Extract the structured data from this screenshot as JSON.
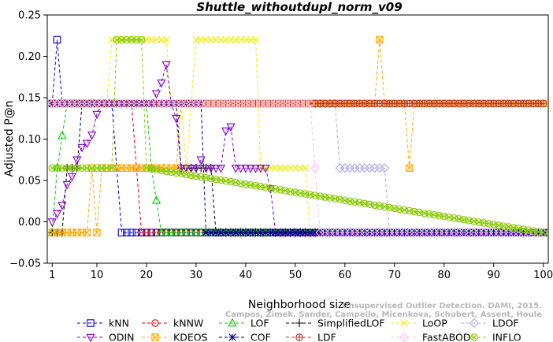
{
  "chart_data": {
    "type": "line",
    "title": "Shuttle_withoutdupl_norm_v09",
    "xlabel": "Neighborhood size",
    "ylabel": "Adjusted P@n",
    "xlim": [
      0,
      101
    ],
    "ylim": [
      -0.05,
      0.25
    ],
    "xticks": [
      1,
      10,
      20,
      30,
      40,
      50,
      60,
      70,
      80,
      90,
      100
    ],
    "yticks": [
      -0.05,
      0.0,
      0.05,
      0.1,
      0.15,
      0.2,
      0.25
    ],
    "ytick_labels": [
      "−0.05",
      "0.00",
      "0.05",
      "0.10",
      "0.15",
      "0.20",
      "0.25"
    ],
    "grid": false,
    "legend_position": "bottom",
    "watermark": [
      "Campos, Zimek, Sander, Campello, Micenkova, Schubert, Assent, Houle",
      "Unsupervised Outlier Detection. DAMI, 2015."
    ],
    "series": [
      {
        "name": "kNN",
        "color": "#0000cc",
        "marker": "square",
        "segments": [
          [
            1,
            0.143
          ],
          [
            2,
            0.22
          ],
          [
            3,
            0.143
          ],
          [
            13,
            0.143
          ],
          [
            14,
            0.065
          ],
          [
            15,
            -0.013
          ],
          [
            100,
            -0.013
          ]
        ]
      },
      {
        "name": "kNNW",
        "color": "#dd0000",
        "marker": "circle",
        "segments": [
          [
            1,
            0.143
          ],
          [
            17,
            0.143
          ],
          [
            18,
            0.065
          ],
          [
            19,
            -0.013
          ],
          [
            100,
            -0.013
          ]
        ]
      },
      {
        "name": "LOF",
        "color": "#00cc00",
        "marker": "triangle-up",
        "segments": [
          [
            1,
            -0.013
          ],
          [
            2,
            0.065
          ],
          [
            4,
            0.143
          ],
          [
            20,
            0.143
          ],
          [
            21,
            0.065
          ],
          [
            23,
            -0.013
          ],
          [
            100,
            -0.013
          ]
        ]
      },
      {
        "name": "SimplifiedLOF",
        "color": "#000000",
        "marker": "plus",
        "segments": [
          [
            1,
            -0.013
          ],
          [
            3,
            -0.013
          ],
          [
            4,
            0.065
          ],
          [
            6,
            0.065
          ],
          [
            7,
            0.143
          ],
          [
            26,
            0.143
          ],
          [
            27,
            0.065
          ],
          [
            33,
            0.065
          ],
          [
            34,
            -0.013
          ],
          [
            100,
            -0.013
          ]
        ]
      },
      {
        "name": "LoOP",
        "color": "#eeee00",
        "marker": "x",
        "segments": [
          [
            1,
            0.143
          ],
          [
            12,
            0.143
          ],
          [
            13,
            0.22
          ],
          [
            24,
            0.22
          ],
          [
            25,
            0.143
          ],
          [
            27,
            0.143
          ],
          [
            28,
            0.065
          ],
          [
            29,
            0.143
          ],
          [
            30,
            0.22
          ],
          [
            42,
            0.22
          ],
          [
            43,
            0.065
          ],
          [
            52,
            0.065
          ],
          [
            53,
            -0.013
          ],
          [
            100,
            -0.013
          ]
        ]
      },
      {
        "name": "LDOF",
        "color": "#aaaaee",
        "marker": "diamond",
        "segments": [
          [
            1,
            0.143
          ],
          [
            58,
            0.143
          ],
          [
            59,
            0.065
          ],
          [
            68,
            0.065
          ],
          [
            69,
            -0.013
          ],
          [
            100,
            -0.013
          ]
        ]
      },
      {
        "name": "ODIN",
        "color": "#8800cc",
        "marker": "triangle-down",
        "segments": [
          [
            1,
            0.0
          ],
          [
            2,
            0.01
          ],
          [
            3,
            0.02
          ],
          [
            4,
            0.045
          ],
          [
            5,
            0.055
          ],
          [
            6,
            0.075
          ],
          [
            7,
            0.09
          ],
          [
            8,
            0.095
          ],
          [
            9,
            0.105
          ],
          [
            10,
            0.13
          ],
          [
            11,
            0.143
          ],
          [
            12,
            0.143
          ],
          [
            21,
            0.143
          ],
          [
            22,
            0.155
          ],
          [
            23,
            0.168
          ],
          [
            24,
            0.19
          ],
          [
            25,
            0.143
          ],
          [
            26,
            0.125
          ],
          [
            27,
            0.065
          ],
          [
            28,
            0.065
          ],
          [
            30,
            0.065
          ],
          [
            31,
            0.075
          ],
          [
            32,
            0.065
          ],
          [
            35,
            0.065
          ],
          [
            36,
            0.11
          ],
          [
            37,
            0.115
          ],
          [
            38,
            0.065
          ],
          [
            44,
            0.065
          ],
          [
            45,
            0.04
          ],
          [
            46,
            -0.013
          ],
          [
            100,
            -0.013
          ]
        ]
      },
      {
        "name": "KDEOS",
        "color": "#ffaa00",
        "marker": "square-x",
        "segments": [
          [
            1,
            -0.013
          ],
          [
            8,
            -0.013
          ],
          [
            9,
            0.065
          ],
          [
            10,
            -0.013
          ],
          [
            11,
            0.065
          ],
          [
            26,
            0.065
          ],
          [
            27,
            0.143
          ],
          [
            66,
            0.143
          ],
          [
            67,
            0.22
          ],
          [
            68,
            0.143
          ],
          [
            72,
            0.143
          ],
          [
            73,
            0.065
          ],
          [
            74,
            0.143
          ],
          [
            100,
            0.143
          ]
        ]
      },
      {
        "name": "COF",
        "color": "#000088",
        "marker": "star",
        "segments": [
          [
            1,
            0.143
          ],
          [
            31,
            0.143
          ],
          [
            32,
            -0.013
          ],
          [
            100,
            -0.013
          ]
        ]
      },
      {
        "name": "LDF",
        "color": "#bb3333",
        "marker": "circle-plus",
        "segments": [
          [
            1,
            0.143
          ],
          [
            100,
            0.143
          ]
        ]
      },
      {
        "name": "FastABOD",
        "color": "#ffbbff",
        "marker": "diamond",
        "segments": [
          [
            1,
            0.143
          ],
          [
            53,
            0.143
          ],
          [
            54,
            0.065
          ],
          [
            55,
            -0.013
          ],
          [
            100,
            -0.013
          ]
        ]
      },
      {
        "name": "INFLO",
        "color": "#88cc00",
        "marker": "circle-x",
        "segments": [
          [
            1,
            0.065
          ],
          [
            13,
            0.065
          ],
          [
            14,
            0.22
          ],
          [
            19,
            0.22
          ],
          [
            20,
            0.065
          ],
          [
            100,
            -0.013
          ]
        ]
      }
    ]
  }
}
